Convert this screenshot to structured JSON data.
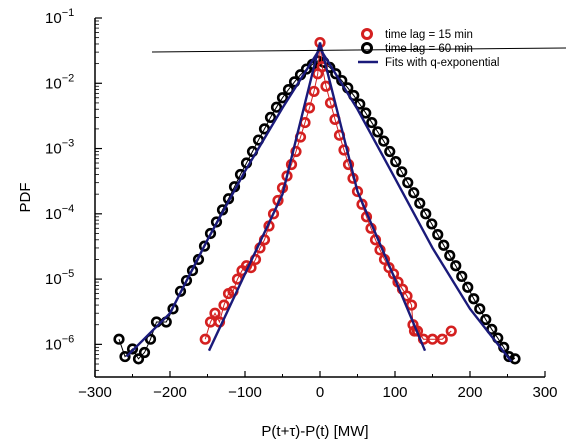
{
  "chart_data": {
    "type": "scatter",
    "xlabel": "P(t+τ)-P(t) [MW]",
    "ylabel": "PDF",
    "xlim": [
      -300,
      300
    ],
    "ylim_log10": [
      -6.5,
      -1
    ],
    "y_scale": "log",
    "x_ticks": [
      -300,
      -200,
      -100,
      0,
      100,
      200,
      300
    ],
    "x_tick_labels": [
      "−300",
      "−200",
      "−100",
      "0",
      "100",
      "200",
      "300"
    ],
    "y_ticks_exp": [
      -1,
      -2,
      -3,
      -4,
      -5,
      -6
    ],
    "y_tick_labels": [
      {
        "base": "10",
        "exp": "−1"
      },
      {
        "base": "10",
        "exp": "−2"
      },
      {
        "base": "10",
        "exp": "−3"
      },
      {
        "base": "10",
        "exp": "−4"
      },
      {
        "base": "10",
        "exp": "−5"
      },
      {
        "base": "10",
        "exp": "−6"
      }
    ],
    "grid": false,
    "legend_position": "top-right",
    "series": [
      {
        "name": "time lag = 60 min",
        "kind": "points",
        "color": "#000000",
        "points": [
          [
            -268,
            1.2e-06
          ],
          [
            -260,
            6.5e-07
          ],
          [
            -250,
            8.5e-07
          ],
          [
            -242,
            6e-07
          ],
          [
            -234,
            7.5e-07
          ],
          [
            -226,
            1.2e-06
          ],
          [
            -218,
            2.2e-06
          ],
          [
            -205,
            2.2e-06
          ],
          [
            -196,
            3.5e-06
          ],
          [
            -186,
            6.5e-06
          ],
          [
            -178,
            9.5e-06
          ],
          [
            -170,
            1.35e-05
          ],
          [
            -162,
            2e-05
          ],
          [
            -154,
            3.2e-05
          ],
          [
            -146,
            5e-05
          ],
          [
            -138,
            7.5e-05
          ],
          [
            -130,
            0.000115
          ],
          [
            -122,
            0.00017
          ],
          [
            -114,
            0.00026
          ],
          [
            -106,
            0.0004
          ],
          [
            -98,
            0.0006
          ],
          [
            -90,
            0.0009
          ],
          [
            -82,
            0.00135
          ],
          [
            -74,
            0.002
          ],
          [
            -66,
            0.003
          ],
          [
            -58,
            0.0043
          ],
          [
            -50,
            0.006
          ],
          [
            -42,
            0.008
          ],
          [
            -34,
            0.0105
          ],
          [
            -26,
            0.0135
          ],
          [
            -18,
            0.0165
          ],
          [
            -10,
            0.0195
          ],
          [
            -3,
            0.022
          ],
          [
            5,
            0.021
          ],
          [
            13,
            0.0175
          ],
          [
            21,
            0.014
          ],
          [
            29,
            0.011
          ],
          [
            37,
            0.0085
          ],
          [
            45,
            0.0065
          ],
          [
            53,
            0.0048
          ],
          [
            61,
            0.0035
          ],
          [
            69,
            0.0025
          ],
          [
            77,
            0.0018
          ],
          [
            85,
            0.0013
          ],
          [
            93,
            0.0009
          ],
          [
            101,
            0.00063
          ],
          [
            109,
            0.00044
          ],
          [
            117,
            0.0003
          ],
          [
            125,
            0.00021
          ],
          [
            133,
            0.000145
          ],
          [
            141,
            0.0001
          ],
          [
            149,
            7e-05
          ],
          [
            157,
            4.8e-05
          ],
          [
            165,
            3.3e-05
          ],
          [
            173,
            2.3e-05
          ],
          [
            181,
            1.6e-05
          ],
          [
            189,
            1.1e-05
          ],
          [
            197,
            7.5e-06
          ],
          [
            205,
            5e-06
          ],
          [
            213,
            3.5e-06
          ],
          [
            221,
            2.4e-06
          ],
          [
            229,
            1.7e-06
          ],
          [
            237,
            1.25e-06
          ],
          [
            245,
            9e-07
          ],
          [
            252,
            6.5e-07
          ],
          [
            260,
            6e-07
          ]
        ]
      },
      {
        "name": "time lag = 15 min",
        "kind": "points",
        "color": "#d42020",
        "points": [
          [
            -153,
            1.2e-06
          ],
          [
            -146,
            2.2e-06
          ],
          [
            -140,
            3e-06
          ],
          [
            -134,
            2.2e-06
          ],
          [
            -128,
            4e-06
          ],
          [
            -122,
            6e-06
          ],
          [
            -116,
            6.5e-06
          ],
          [
            -110,
            1e-05
          ],
          [
            -104,
            1.35e-05
          ],
          [
            -98,
            1.6e-05
          ],
          [
            -92,
            1.5e-05
          ],
          [
            -86,
            2e-05
          ],
          [
            -80,
            3e-05
          ],
          [
            -74,
            4e-05
          ],
          [
            -68,
            6.5e-05
          ],
          [
            -62,
            0.0001
          ],
          [
            -56,
            0.00016
          ],
          [
            -50,
            0.00025
          ],
          [
            -44,
            0.00038
          ],
          [
            -38,
            0.00057
          ],
          [
            -32,
            0.0009
          ],
          [
            -26,
            0.0015
          ],
          [
            -20,
            0.0025
          ],
          [
            -14,
            0.0042
          ],
          [
            -8,
            0.0075
          ],
          [
            -3,
            0.014
          ],
          [
            0,
            0.042
          ],
          [
            3,
            0.018
          ],
          [
            8,
            0.009
          ],
          [
            14,
            0.005
          ],
          [
            20,
            0.0028
          ],
          [
            26,
            0.0016
          ],
          [
            32,
            0.00095
          ],
          [
            38,
            0.00057
          ],
          [
            44,
            0.00035
          ],
          [
            50,
            0.00022
          ],
          [
            56,
            0.00014
          ],
          [
            62,
            9e-05
          ],
          [
            68,
            6e-05
          ],
          [
            74,
            4e-05
          ],
          [
            80,
            2.8e-05
          ],
          [
            86,
            2e-05
          ],
          [
            92,
            1.5e-05
          ],
          [
            98,
            1.2e-05
          ],
          [
            104,
            9e-06
          ],
          [
            110,
            7e-06
          ],
          [
            116,
            5.5e-06
          ],
          [
            122,
            4e-06
          ],
          [
            124,
            2e-06
          ],
          [
            126,
            1.6e-06
          ],
          [
            130,
            1.6e-06
          ],
          [
            138,
            1.2e-06
          ],
          [
            150,
            1.2e-06
          ],
          [
            163,
            1.2e-06
          ],
          [
            175,
            1.6e-06
          ]
        ]
      },
      {
        "name": "Fits with q-exponential",
        "kind": "lines",
        "color": "#1a1a7a",
        "lines": [
          [
            [
              -258,
              6.5e-07
            ],
            [
              -200,
              3e-06
            ],
            [
              -150,
              4e-05
            ],
            [
              -100,
              0.00045
            ],
            [
              -50,
              0.0042
            ],
            [
              0,
              0.034
            ],
            [
              50,
              0.004
            ],
            [
              100,
              0.00035
            ],
            [
              150,
              3e-05
            ],
            [
              200,
              3.5e-06
            ],
            [
              255,
              5.5e-07
            ]
          ],
          [
            [
              -148,
              8e-07
            ],
            [
              -100,
              1.2e-05
            ],
            [
              -50,
              0.0002
            ],
            [
              0,
              0.042
            ],
            [
              50,
              0.00022
            ],
            [
              100,
              1e-05
            ],
            [
              140,
              8e-07
            ]
          ]
        ]
      }
    ],
    "legend": [
      {
        "label": "time lag = 15 min",
        "marker": "open-circle",
        "color": "#d42020"
      },
      {
        "label": "time lag = 60 min",
        "marker": "open-circle",
        "color": "#000000"
      },
      {
        "label": "Fits with q-exponential",
        "marker": "line",
        "color": "#1a1a7a"
      }
    ]
  }
}
